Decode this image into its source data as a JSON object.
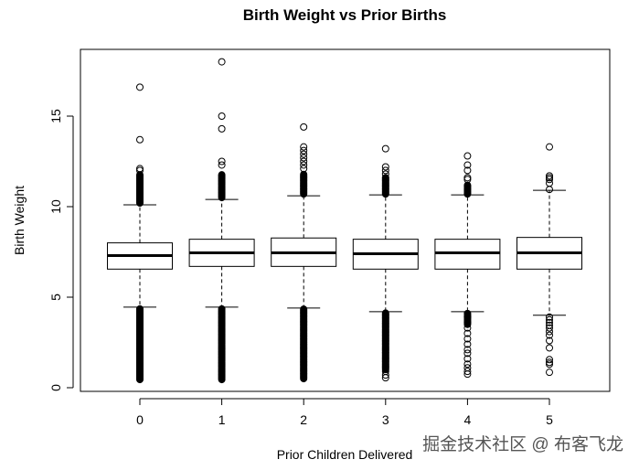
{
  "chart_data": {
    "type": "boxplot",
    "title": "Birth Weight vs Prior Births",
    "xlabel": "Prior Children Delivered",
    "ylabel": "Birth Weight",
    "ylim": [
      0,
      18.5
    ],
    "yticks": [
      0,
      5,
      10,
      15
    ],
    "ytick_labels": [
      "0",
      "5",
      "10",
      "15"
    ],
    "categories": [
      "0",
      "1",
      "2",
      "3",
      "4",
      "5"
    ],
    "boxes": [
      {
        "category": "0",
        "lower_whisker": 4.45,
        "q1": 6.55,
        "median": 7.3,
        "q3": 8.0,
        "upper_whisker": 10.1,
        "outliers": [
          16.6,
          13.7,
          12.1,
          12.0
        ],
        "dense_outlier_ranges": [
          [
            10.2,
            11.8
          ],
          [
            0.45,
            4.4
          ]
        ]
      },
      {
        "category": "1",
        "lower_whisker": 4.45,
        "q1": 6.7,
        "median": 7.45,
        "q3": 8.2,
        "upper_whisker": 10.4,
        "outliers": [
          18.0,
          15.0,
          14.3,
          12.5,
          12.3
        ],
        "dense_outlier_ranges": [
          [
            10.5,
            11.8
          ],
          [
            0.45,
            4.4
          ]
        ]
      },
      {
        "category": "2",
        "lower_whisker": 4.4,
        "q1": 6.7,
        "median": 7.45,
        "q3": 8.27,
        "upper_whisker": 10.6,
        "outliers": [
          14.4,
          13.3,
          13.1,
          12.9,
          12.7,
          12.5,
          12.3,
          12.1
        ],
        "dense_outlier_ranges": [
          [
            10.7,
            11.8
          ],
          [
            0.5,
            4.35
          ]
        ]
      },
      {
        "category": "3",
        "lower_whisker": 4.2,
        "q1": 6.55,
        "median": 7.4,
        "q3": 8.2,
        "upper_whisker": 10.65,
        "outliers": [
          13.2,
          12.2,
          12.0,
          11.8,
          0.55,
          0.7,
          0.9
        ],
        "dense_outlier_ranges": [
          [
            10.7,
            11.6
          ],
          [
            1.0,
            4.15
          ]
        ]
      },
      {
        "category": "4",
        "lower_whisker": 4.2,
        "q1": 6.55,
        "median": 7.45,
        "q3": 8.2,
        "upper_whisker": 10.65,
        "outliers": [
          12.8,
          12.3,
          12.0,
          11.6,
          11.5,
          3.9,
          3.6,
          3.3,
          3.0,
          2.7,
          2.4,
          2.1,
          1.9,
          1.6,
          1.3,
          1.1,
          0.9,
          0.75
        ],
        "dense_outlier_ranges": [
          [
            10.7,
            11.2
          ],
          [
            3.5,
            4.15
          ]
        ]
      },
      {
        "category": "5",
        "lower_whisker": 4.0,
        "q1": 6.55,
        "median": 7.45,
        "q3": 8.3,
        "upper_whisker": 10.9,
        "outliers": [
          13.3,
          11.7,
          11.6,
          11.5,
          11.3,
          10.95,
          3.9,
          3.75,
          3.6,
          3.45,
          3.3,
          3.1,
          2.9,
          2.6,
          2.2,
          1.55,
          1.4,
          1.3,
          0.85
        ],
        "dense_outlier_ranges": []
      }
    ]
  },
  "watermark": "掘金技术社区 @ 布客飞龙"
}
